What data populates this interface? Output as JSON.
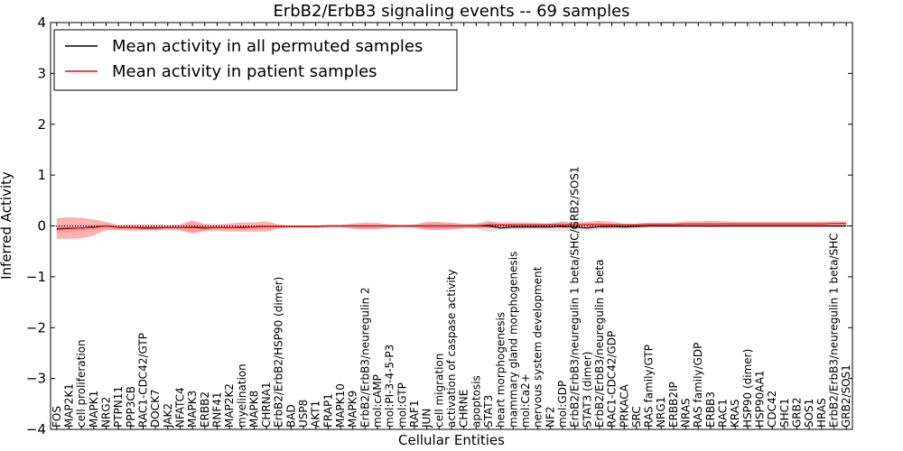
{
  "chart_data": {
    "type": "line",
    "title": "ErbB2/ErbB3 signaling events -- 69 samples",
    "xlabel": "Cellular Entities",
    "ylabel": "Inferred Activity",
    "ylim": [
      -4,
      4
    ],
    "yticks": [
      "−4",
      "−3",
      "−2",
      "−1",
      "0",
      "1",
      "2",
      "3",
      "4"
    ],
    "grid": false,
    "legend_position": "top-left",
    "categories": [
      "FOS",
      "MAP2K1",
      "cell proliferation",
      "MAPK1",
      "NRG2",
      "PTPN11",
      "PPP3CB",
      "RAC1-CDC42/GTP",
      "DOCK7",
      "JAK2",
      "NFATC4",
      "MAPK3",
      "ERBB2",
      "RNF41",
      "MAP2K2",
      "myelination",
      "MAPK8",
      "CHRNA1",
      "ErbB2/ErbB2/HSP90 (dimer)",
      "BAD",
      "USP8",
      "AKT1",
      "FRAP1",
      "MAPK10",
      "MAPK9",
      "ErbB2/ErbB3/neuregulin 2",
      "mol:cAMP",
      "mol:PI-3-4-5-P3",
      "mol:GTP",
      "RAF1",
      "JUN",
      "cell migration",
      "activation of caspase activity",
      "CHRNE",
      "apoptosis",
      "STAT3",
      "heart morphogenesis",
      "mammary gland morphogenesis",
      "mol:Ca2+",
      "nervous system development",
      "NF2",
      "mol:GDP",
      "ErbB2/ErbB3/neuregulin 1 beta/SHC/GRB2/SOS1",
      "STAT3 (dimer)",
      "ErbB2/ErbB3/neuregulin 1 beta",
      "RAC1-CDC42/GDP",
      "PRKACA",
      "SRC",
      "RAS family/GTP",
      "NRG1",
      "ERBB2IP",
      "NRAS",
      "RAS family/GDP",
      "ERBB3",
      "RAC1",
      "KRAS",
      "HSP90 (dimer)",
      "HSP90AA1",
      "CDC42",
      "SHC1",
      "GRB2",
      "SOS1",
      "HRAS",
      "ErbB2/ErbB3/neuregulin 1 beta/SHC",
      "GRB2/SOS1"
    ],
    "series": [
      {
        "name": "Mean activity in all permuted samples",
        "color": "#000000",
        "values": [
          -0.06,
          -0.05,
          -0.04,
          -0.02,
          0.0,
          -0.03,
          -0.03,
          -0.04,
          -0.04,
          -0.03,
          -0.03,
          -0.03,
          -0.04,
          -0.03,
          -0.03,
          -0.03,
          -0.02,
          -0.01,
          -0.01,
          -0.01,
          -0.01,
          -0.01,
          0.0,
          0.0,
          0.0,
          0.0,
          0.0,
          0.0,
          0.0,
          0.0,
          0.0,
          0.0,
          0.0,
          0.0,
          0.0,
          0.0,
          -0.04,
          -0.02,
          -0.02,
          -0.02,
          -0.02,
          -0.01,
          -0.02,
          -0.04,
          -0.01,
          -0.01,
          -0.02,
          -0.01,
          0.0,
          0.0,
          0.0,
          0.0,
          0.0,
          0.0,
          0.0,
          0.0,
          0.0,
          0.0,
          0.0,
          0.0,
          0.0,
          0.0,
          0.0,
          0.0,
          0.0
        ],
        "band": [
          0.08,
          0.07,
          0.05,
          0.05,
          0.04,
          0.03,
          0.03,
          0.03,
          0.03,
          0.03,
          0.03,
          0.1,
          0.05,
          0.03,
          0.03,
          0.03,
          0.03,
          0.03,
          0.02,
          0.02,
          0.02,
          0.02,
          0.02,
          0.02,
          0.02,
          0.02,
          0.02,
          0.02,
          0.02,
          0.02,
          0.05,
          0.05,
          0.04,
          0.03,
          0.05,
          0.13,
          0.05,
          0.05,
          0.05,
          0.05,
          0.08,
          0.1,
          0.06,
          0.07,
          0.06,
          0.05,
          0.05,
          0.04,
          0.04,
          0.03,
          0.03,
          0.03,
          0.03,
          0.03,
          0.03,
          0.03,
          0.03,
          0.03,
          0.03,
          0.03,
          0.03,
          0.03,
          0.03,
          0.03,
          0.03
        ]
      },
      {
        "name": "Mean activity in patient samples",
        "color": "#ff0000",
        "values": [
          -0.05,
          -0.04,
          -0.04,
          -0.03,
          0.0,
          -0.03,
          -0.03,
          -0.03,
          -0.03,
          -0.03,
          -0.03,
          -0.02,
          -0.03,
          -0.03,
          -0.03,
          -0.02,
          -0.02,
          -0.01,
          -0.01,
          -0.01,
          -0.01,
          -0.01,
          0.0,
          0.0,
          0.0,
          0.0,
          0.0,
          0.0,
          0.0,
          0.0,
          0.0,
          0.0,
          0.0,
          0.0,
          0.0,
          0.02,
          0.02,
          0.02,
          0.02,
          0.02,
          0.02,
          0.02,
          0.02,
          0.03,
          0.03,
          0.02,
          0.02,
          0.02,
          0.03,
          0.03,
          0.03,
          0.04,
          0.04,
          0.04,
          0.04,
          0.04,
          0.04,
          0.04,
          0.04,
          0.04,
          0.04,
          0.04,
          0.04,
          0.05,
          0.05
        ],
        "band": [
          0.2,
          0.21,
          0.2,
          0.16,
          0.08,
          0.05,
          0.06,
          0.06,
          0.06,
          0.05,
          0.06,
          0.13,
          0.07,
          0.06,
          0.08,
          0.09,
          0.09,
          0.1,
          0.04,
          0.02,
          0.02,
          0.02,
          0.02,
          0.02,
          0.05,
          0.07,
          0.06,
          0.03,
          0.02,
          0.03,
          0.08,
          0.08,
          0.07,
          0.04,
          0.04,
          0.06,
          0.05,
          0.05,
          0.05,
          0.04,
          0.03,
          0.06,
          0.05,
          0.05,
          0.07,
          0.06,
          0.03,
          0.03,
          0.04,
          0.04,
          0.04,
          0.05,
          0.05,
          0.06,
          0.05,
          0.04,
          0.04,
          0.04,
          0.04,
          0.04,
          0.04,
          0.04,
          0.04,
          0.04,
          0.04
        ]
      }
    ]
  }
}
